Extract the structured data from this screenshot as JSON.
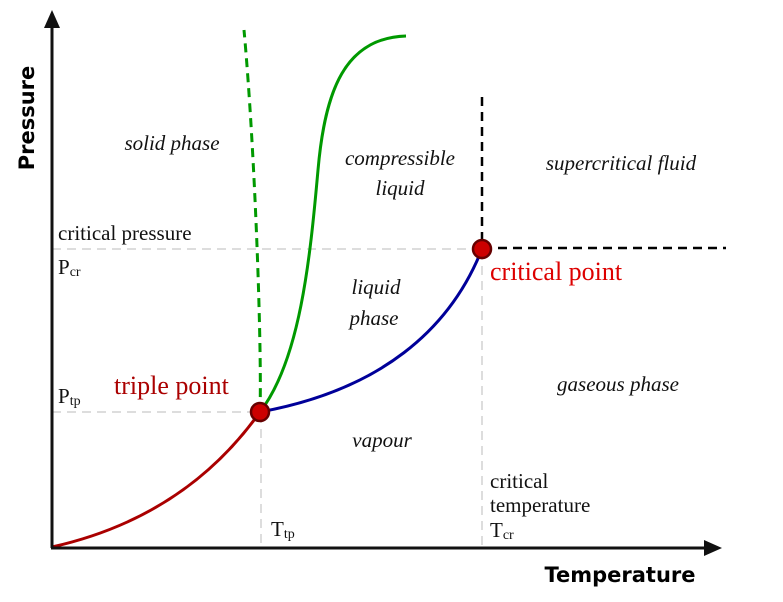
{
  "axes": {
    "y_label": "Pressure",
    "x_label": "Temperature"
  },
  "regions": {
    "solid": "solid phase",
    "compressible_line1": "compressible",
    "compressible_line2": "liquid",
    "supercritical": "supercritical fluid",
    "liquid_line1": "liquid",
    "liquid_line2": "phase",
    "gaseous": "gaseous phase",
    "vapour": "vapour"
  },
  "points": {
    "triple": "triple point",
    "critical": "critical point"
  },
  "pressure_labels": {
    "critical_pressure": "critical pressure",
    "p_cr_main": "P",
    "p_cr_sub": "cr",
    "p_tp_main": "P",
    "p_tp_sub": "tp"
  },
  "temperature_labels": {
    "t_tp_main": "T",
    "t_tp_sub": "tp",
    "critical_temp_line1": "critical",
    "critical_temp_line2": "temperature",
    "t_cr_main": "T",
    "t_cr_sub": "cr"
  },
  "colors": {
    "sublimation_curve": "#aa0000",
    "vaporization_curve": "#000099",
    "fusion_curve": "#009900",
    "point_fill": "#cc0000",
    "point_stroke": "#660000",
    "triple_label": "#aa0000",
    "critical_label": "#dd0000",
    "guide": "#dddddd",
    "axis": "#111111"
  }
}
